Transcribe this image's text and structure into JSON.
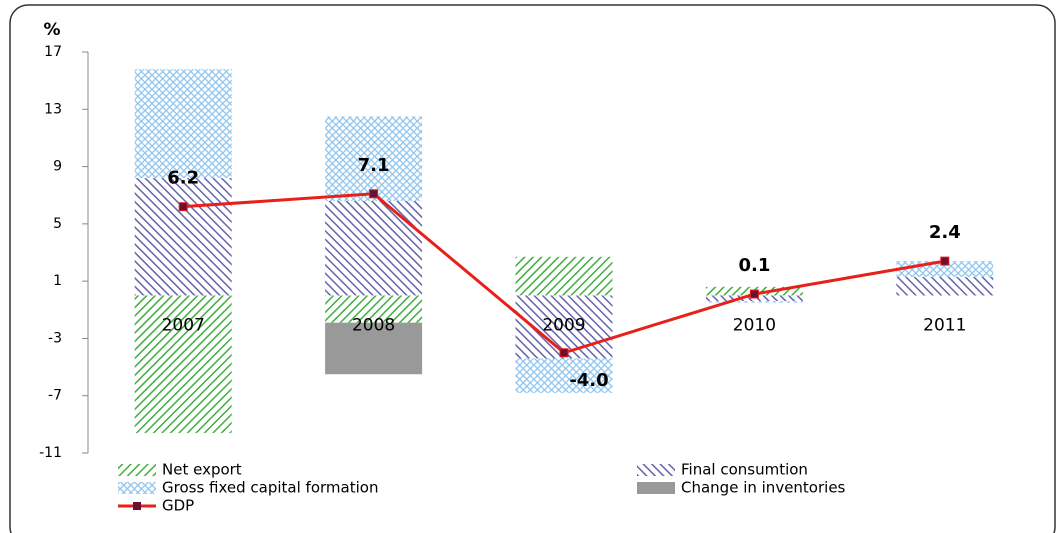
{
  "chart_data": {
    "type": "bar",
    "y_label": "%",
    "categories": [
      "2007",
      "2008",
      "2009",
      "2010",
      "2011"
    ],
    "series": [
      {
        "name": "Net export",
        "color": "#3fae3f",
        "pattern": "hatch",
        "values": [
          -9.6,
          -1.9,
          2.7,
          0.6,
          0
        ]
      },
      {
        "name": "Final consumtion",
        "color": "#6464aa",
        "pattern": "hatch",
        "values": [
          8.2,
          6.6,
          -4.4,
          -0.4,
          1.3
        ]
      },
      {
        "name": "Gross fixed capital formation",
        "color": "#8ec4ee",
        "pattern": "cross",
        "values": [
          7.6,
          5.9,
          -2.4,
          -0.1,
          1.1
        ]
      },
      {
        "name": "Change in inventories",
        "color": "#999999",
        "pattern": "solid",
        "values": [
          0,
          -3.6,
          0,
          0,
          0
        ]
      },
      {
        "name": "GDP",
        "type": "line",
        "color": "#e8201a",
        "marker_color": "#6a1030",
        "values": [
          6.2,
          7.1,
          -4.0,
          0.1,
          2.4
        ],
        "value_labels": [
          "6.2",
          "7.1",
          "-4.0",
          "0.1",
          "2.4"
        ]
      }
    ],
    "ylim": [
      -11,
      17
    ],
    "yticks": [
      -11,
      -7,
      -3,
      1,
      5,
      9,
      13,
      17
    ]
  }
}
